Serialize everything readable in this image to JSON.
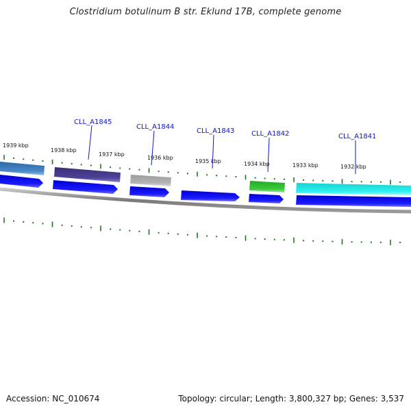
{
  "title": "Clostridium botulinum B str. Eklund 17B, complete genome",
  "footer": {
    "accession": "Accession: NC_010674",
    "summary": "Topology: circular; Length: 3,800,327 bp; Genes: 3,537"
  },
  "kbp_ticks": [
    "1939 kbp",
    "1938 kbp",
    "1937 kbp",
    "1936 kbp",
    "1935 kbp",
    "1934 kbp",
    "1933 kbp",
    "1932 kbp"
  ],
  "loci": [
    "CLL_A1845",
    "CLL_A1844",
    "CLL_A1843",
    "CLL_A1842",
    "CLL_A1841"
  ],
  "colors": {
    "backbone": "#7a7a7a",
    "cds": "#1010e6",
    "tick": "#1a7a1a",
    "locus_text": "#0a14c8",
    "feature_steelblue": "#3a78b4",
    "feature_purple": "#483c8c",
    "feature_gray": "#a8a8a8",
    "feature_green": "#33bb33",
    "feature_cyan": "#22dddd"
  }
}
